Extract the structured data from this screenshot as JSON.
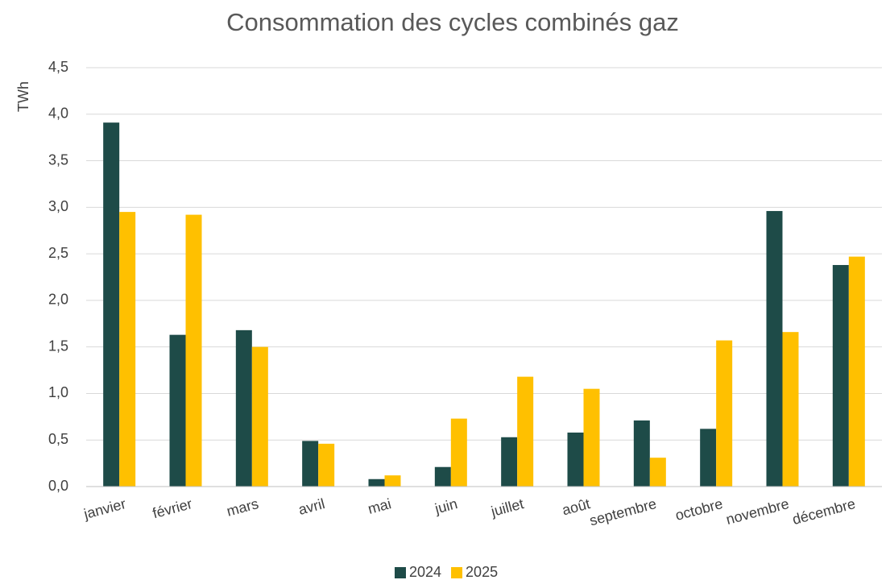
{
  "chart_data": {
    "type": "bar",
    "title": "Consommation des cycles combinés gaz",
    "y_label": "TWh",
    "categories": [
      "janvier",
      "février",
      "mars",
      "avril",
      "mai",
      "juin",
      "juillet",
      "août",
      "septembre",
      "octobre",
      "novembre",
      "décembre"
    ],
    "series": [
      {
        "name": "2024",
        "color": "#1e4b48",
        "values": [
          3.91,
          1.63,
          1.68,
          0.49,
          0.08,
          0.21,
          0.53,
          0.58,
          0.71,
          0.62,
          2.96,
          2.38
        ]
      },
      {
        "name": "2025",
        "color": "#ffc000",
        "values": [
          2.95,
          2.92,
          1.5,
          0.46,
          0.12,
          0.73,
          1.18,
          1.05,
          0.31,
          1.57,
          1.66,
          2.47
        ]
      }
    ],
    "ylim": [
      0,
      4.5
    ],
    "yticks": [
      {
        "value": 0,
        "label": "0,0"
      },
      {
        "value": 0.5,
        "label": "0,5"
      },
      {
        "value": 1,
        "label": "1,0"
      },
      {
        "value": 1.5,
        "label": "1,5"
      },
      {
        "value": 2,
        "label": "2,0"
      },
      {
        "value": 2.5,
        "label": "2,5"
      },
      {
        "value": 3,
        "label": "3,0"
      },
      {
        "value": 3.5,
        "label": "3,5"
      },
      {
        "value": 4,
        "label": "4,0"
      },
      {
        "value": 4.5,
        "label": "4,5"
      }
    ],
    "grid": true,
    "legend": "bottom"
  }
}
